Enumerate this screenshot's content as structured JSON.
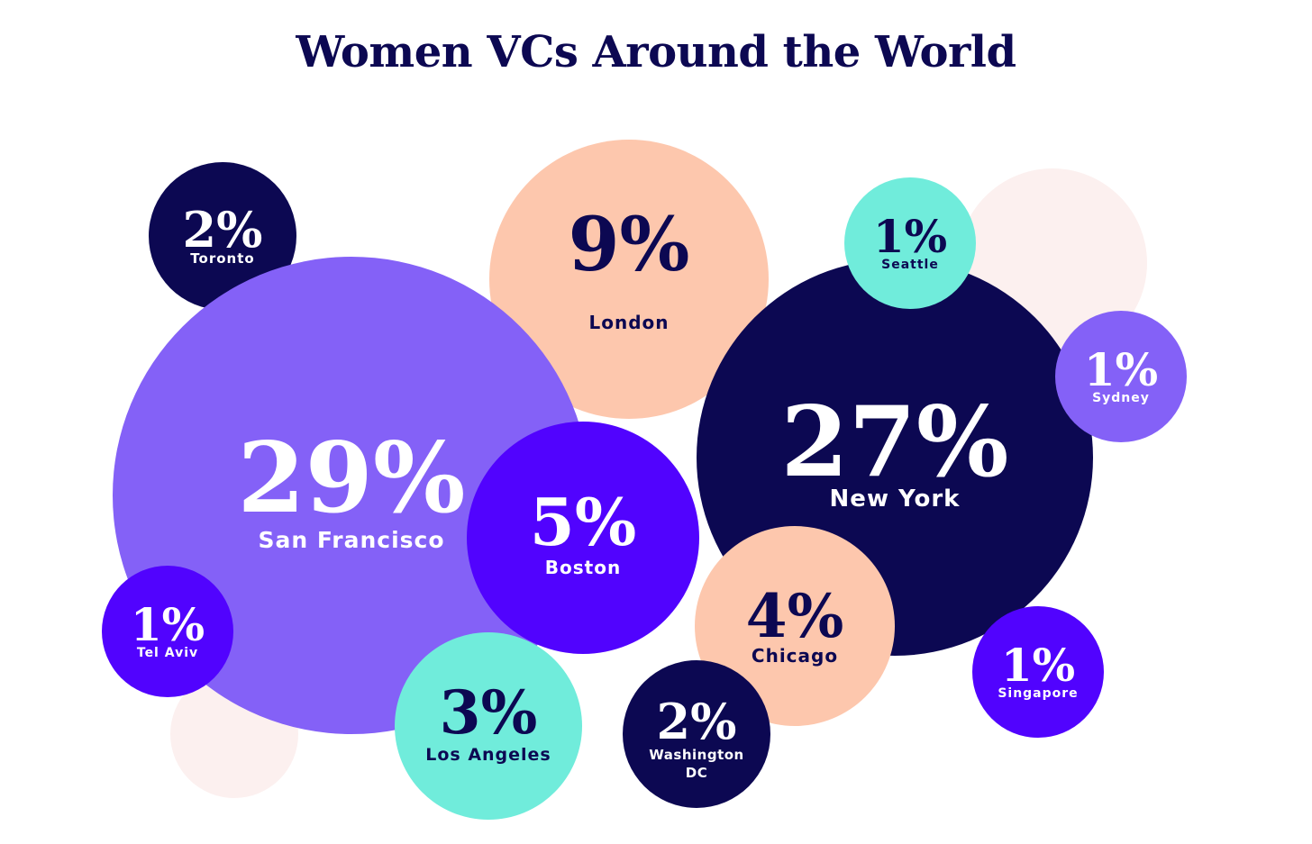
{
  "chart_data": {
    "type": "bubble",
    "title": "Women VCs Around the World",
    "unit": "%",
    "colors": {
      "navy": "#0c0852",
      "lavender": "#8461f7",
      "peach": "#fdc7ad",
      "mint": "#70ecdb",
      "violet": "#5103fe",
      "blush": "#fcf0ef"
    },
    "points": [
      {
        "label": "San Francisco",
        "value": 29,
        "color": "lavender"
      },
      {
        "label": "New York",
        "value": 27,
        "color": "navy"
      },
      {
        "label": "London",
        "value": 9,
        "color": "peach"
      },
      {
        "label": "Boston",
        "value": 5,
        "color": "violet"
      },
      {
        "label": "Chicago",
        "value": 4,
        "color": "peach"
      },
      {
        "label": "Los Angeles",
        "value": 3,
        "color": "mint"
      },
      {
        "label": "Toronto",
        "value": 2,
        "color": "navy"
      },
      {
        "label": "Washington DC",
        "value": 2,
        "color": "navy"
      },
      {
        "label": "Seattle",
        "value": 1,
        "color": "mint"
      },
      {
        "label": "Sydney",
        "value": 1,
        "color": "lavender"
      },
      {
        "label": "Tel Aviv",
        "value": 1,
        "color": "violet"
      },
      {
        "label": "Singapore",
        "value": 1,
        "color": "violet"
      }
    ]
  }
}
